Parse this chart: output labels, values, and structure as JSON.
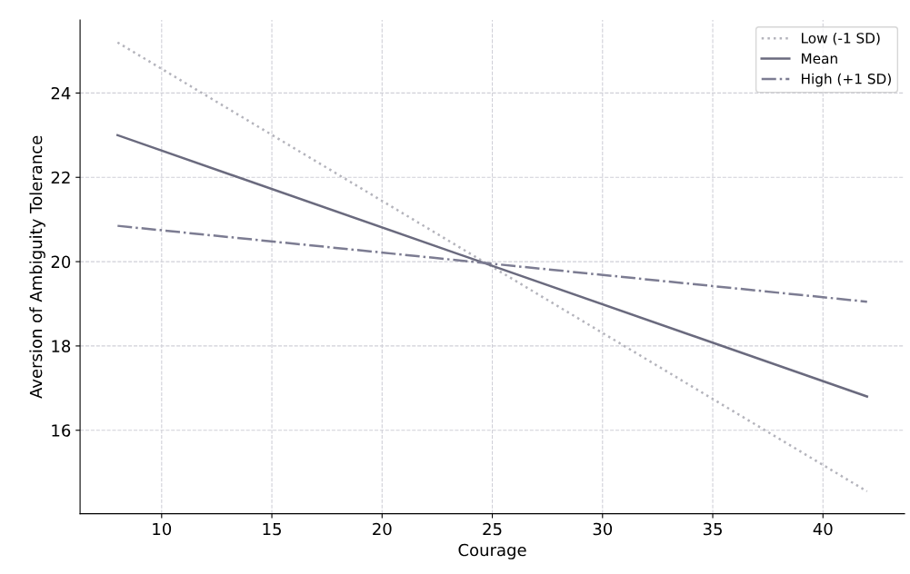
{
  "chart_data": {
    "type": "line",
    "xlabel": "Courage",
    "ylabel": "Aversion of Ambiguity Tolerance",
    "x": [
      8,
      42
    ],
    "series": [
      {
        "name": "Low (-1 SD)",
        "color": "#b4b4bc",
        "line_style": "dotted",
        "values": [
          25.2,
          14.55
        ]
      },
      {
        "name": "Mean",
        "color": "#6a6a7e",
        "line_style": "solid",
        "values": [
          23.0,
          16.8
        ]
      },
      {
        "name": "High (+1 SD)",
        "color": "#7c7c92",
        "line_style": "dashdot",
        "values": [
          20.85,
          19.05
        ]
      }
    ],
    "xlim": [
      6.3,
      43.7
    ],
    "ylim": [
      14.02,
      25.73
    ],
    "xticks": [
      10,
      15,
      20,
      25,
      30,
      35,
      40
    ],
    "yticks": [
      16,
      18,
      20,
      22,
      24
    ],
    "grid": true,
    "legend": "top right",
    "marker": "none"
  }
}
